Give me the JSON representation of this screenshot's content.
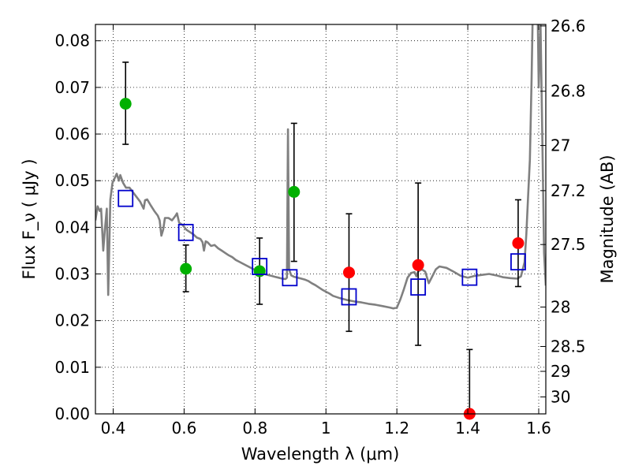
{
  "chart_data": {
    "type": "scatter",
    "xlabel": "Wavelength  λ (μm)",
    "ylabel": "Flux  F_ν  ( μJy )",
    "y2label": "Magnitude (AB)",
    "xlim": [
      0.35,
      1.62
    ],
    "ylim": [
      0.0,
      0.0835
    ],
    "grid": true,
    "x_ticks": [
      0.4,
      0.6,
      0.8,
      1.0,
      1.2,
      1.4,
      1.6
    ],
    "x_tick_labels": [
      "0.4",
      "0.6",
      "0.8",
      "1",
      "1.2",
      "1.4",
      "1.6"
    ],
    "y_ticks": [
      0.0,
      0.01,
      0.02,
      0.03,
      0.04,
      0.05,
      0.06,
      0.07,
      0.08
    ],
    "y_tick_labels": [
      "0.00",
      "0.01",
      "0.02",
      "0.03",
      "0.04",
      "0.05",
      "0.06",
      "0.07",
      "0.08"
    ],
    "y2_ticks": [
      {
        "mag": 26.6,
        "label": "26.6"
      },
      {
        "mag": 26.8,
        "label": "26.8"
      },
      {
        "mag": 27.0,
        "label": "27"
      },
      {
        "mag": 27.2,
        "label": "27.2"
      },
      {
        "mag": 27.5,
        "label": "27.5"
      },
      {
        "mag": 28.0,
        "label": "28"
      },
      {
        "mag": 28.5,
        "label": "28.5"
      },
      {
        "mag": 29.0,
        "label": "29"
      },
      {
        "mag": 30.0,
        "label": "30"
      }
    ],
    "model_sed": [
      [
        0.35,
        0.0415
      ],
      [
        0.356,
        0.0445
      ],
      [
        0.362,
        0.0435
      ],
      [
        0.366,
        0.044
      ],
      [
        0.372,
        0.035
      ],
      [
        0.376,
        0.039
      ],
      [
        0.382,
        0.044
      ],
      [
        0.386,
        0.0255
      ],
      [
        0.392,
        0.046
      ],
      [
        0.398,
        0.0495
      ],
      [
        0.404,
        0.0505
      ],
      [
        0.41,
        0.0515
      ],
      [
        0.416,
        0.05
      ],
      [
        0.42,
        0.0512
      ],
      [
        0.428,
        0.0495
      ],
      [
        0.436,
        0.0485
      ],
      [
        0.446,
        0.0485
      ],
      [
        0.456,
        0.0475
      ],
      [
        0.466,
        0.0465
      ],
      [
        0.476,
        0.0455
      ],
      [
        0.486,
        0.044
      ],
      [
        0.49,
        0.0458
      ],
      [
        0.496,
        0.046
      ],
      [
        0.506,
        0.0447
      ],
      [
        0.516,
        0.0435
      ],
      [
        0.526,
        0.0425
      ],
      [
        0.531,
        0.0415
      ],
      [
        0.536,
        0.0382
      ],
      [
        0.541,
        0.0395
      ],
      [
        0.546,
        0.042
      ],
      [
        0.556,
        0.042
      ],
      [
        0.566,
        0.0415
      ],
      [
        0.576,
        0.0425
      ],
      [
        0.58,
        0.043
      ],
      [
        0.586,
        0.041
      ],
      [
        0.596,
        0.0405
      ],
      [
        0.606,
        0.0395
      ],
      [
        0.616,
        0.039
      ],
      [
        0.626,
        0.0385
      ],
      [
        0.636,
        0.0378
      ],
      [
        0.646,
        0.0375
      ],
      [
        0.652,
        0.0368
      ],
      [
        0.656,
        0.035
      ],
      [
        0.661,
        0.037
      ],
      [
        0.666,
        0.0368
      ],
      [
        0.676,
        0.036
      ],
      [
        0.686,
        0.0362
      ],
      [
        0.696,
        0.0355
      ],
      [
        0.706,
        0.035
      ],
      [
        0.716,
        0.0345
      ],
      [
        0.726,
        0.034
      ],
      [
        0.736,
        0.0336
      ],
      [
        0.746,
        0.033
      ],
      [
        0.756,
        0.0326
      ],
      [
        0.766,
        0.0322
      ],
      [
        0.776,
        0.0318
      ],
      [
        0.786,
        0.0314
      ],
      [
        0.796,
        0.031
      ],
      [
        0.806,
        0.0307
      ],
      [
        0.816,
        0.0303
      ],
      [
        0.826,
        0.03
      ],
      [
        0.836,
        0.0298
      ],
      [
        0.846,
        0.0296
      ],
      [
        0.856,
        0.0294
      ],
      [
        0.866,
        0.0292
      ],
      [
        0.876,
        0.029
      ],
      [
        0.886,
        0.0289
      ],
      [
        0.89,
        0.0292
      ],
      [
        0.893,
        0.061
      ],
      [
        0.896,
        0.031
      ],
      [
        0.902,
        0.0297
      ],
      [
        0.91,
        0.0294
      ],
      [
        0.92,
        0.0292
      ],
      [
        0.93,
        0.029
      ],
      [
        0.94,
        0.0288
      ],
      [
        0.95,
        0.0285
      ],
      [
        0.96,
        0.028
      ],
      [
        0.97,
        0.0276
      ],
      [
        0.98,
        0.0271
      ],
      [
        0.99,
        0.0266
      ],
      [
        1.0,
        0.0262
      ],
      [
        1.01,
        0.0258
      ],
      [
        1.02,
        0.0253
      ],
      [
        1.04,
        0.0248
      ],
      [
        1.06,
        0.0244
      ],
      [
        1.08,
        0.0241
      ],
      [
        1.1,
        0.0239
      ],
      [
        1.12,
        0.0236
      ],
      [
        1.14,
        0.0234
      ],
      [
        1.16,
        0.0231
      ],
      [
        1.18,
        0.0228
      ],
      [
        1.19,
        0.0226
      ],
      [
        1.2,
        0.0228
      ],
      [
        1.21,
        0.0246
      ],
      [
        1.22,
        0.0268
      ],
      [
        1.23,
        0.0292
      ],
      [
        1.24,
        0.0302
      ],
      [
        1.25,
        0.0304
      ],
      [
        1.255,
        0.0295
      ],
      [
        1.26,
        0.0305
      ],
      [
        1.27,
        0.031
      ],
      [
        1.28,
        0.0305
      ],
      [
        1.29,
        0.028
      ],
      [
        1.3,
        0.0295
      ],
      [
        1.31,
        0.031
      ],
      [
        1.32,
        0.0316
      ],
      [
        1.34,
        0.0313
      ],
      [
        1.36,
        0.0305
      ],
      [
        1.38,
        0.0296
      ],
      [
        1.4,
        0.0292
      ],
      [
        1.42,
        0.0296
      ],
      [
        1.44,
        0.0298
      ],
      [
        1.46,
        0.03
      ],
      [
        1.48,
        0.0297
      ],
      [
        1.5,
        0.0293
      ],
      [
        1.52,
        0.0291
      ],
      [
        1.54,
        0.029
      ],
      [
        1.55,
        0.0295
      ],
      [
        1.56,
        0.0325
      ],
      [
        1.565,
        0.0385
      ],
      [
        1.57,
        0.0465
      ],
      [
        1.575,
        0.0545
      ],
      [
        1.58,
        0.072
      ],
      [
        1.585,
        0.095
      ],
      [
        1.595,
        0.0975
      ],
      [
        1.6,
        0.07
      ],
      [
        1.605,
        0.0835
      ],
      [
        1.61,
        0.06
      ],
      [
        1.615,
        0.0345
      ],
      [
        1.62,
        0.0275
      ]
    ],
    "series": [
      {
        "marker": "circle",
        "color": "#00b000",
        "points": [
          {
            "x": 0.435,
            "y": 0.0665,
            "err_lo": 0.0578,
            "err_hi": 0.0754
          },
          {
            "x": 0.605,
            "y": 0.0311,
            "err_lo": 0.0262,
            "err_hi": 0.0362
          },
          {
            "x": 0.813,
            "y": 0.0306,
            "err_lo": 0.0235,
            "err_hi": 0.0377
          },
          {
            "x": 0.91,
            "y": 0.0476,
            "err_lo": 0.0327,
            "err_hi": 0.0623
          }
        ]
      },
      {
        "marker": "circle",
        "color": "#ff0000",
        "points": [
          {
            "x": 1.065,
            "y": 0.0303,
            "err_lo": 0.0177,
            "err_hi": 0.0429
          },
          {
            "x": 1.26,
            "y": 0.0319,
            "err_lo": 0.0147,
            "err_hi": 0.0495
          },
          {
            "x": 1.405,
            "y": 0.0,
            "err_lo": 0.0,
            "err_hi": 0.0138
          },
          {
            "x": 1.542,
            "y": 0.0366,
            "err_lo": 0.0273,
            "err_hi": 0.0459
          }
        ]
      },
      {
        "marker": "square-open",
        "color": "#0000cc",
        "points": [
          {
            "x": 0.435,
            "y": 0.0462
          },
          {
            "x": 0.605,
            "y": 0.0389
          },
          {
            "x": 0.813,
            "y": 0.0316
          },
          {
            "x": 0.898,
            "y": 0.0292
          },
          {
            "x": 1.065,
            "y": 0.0251
          },
          {
            "x": 1.26,
            "y": 0.0272
          },
          {
            "x": 1.405,
            "y": 0.0293
          },
          {
            "x": 1.542,
            "y": 0.0326
          }
        ]
      }
    ]
  }
}
